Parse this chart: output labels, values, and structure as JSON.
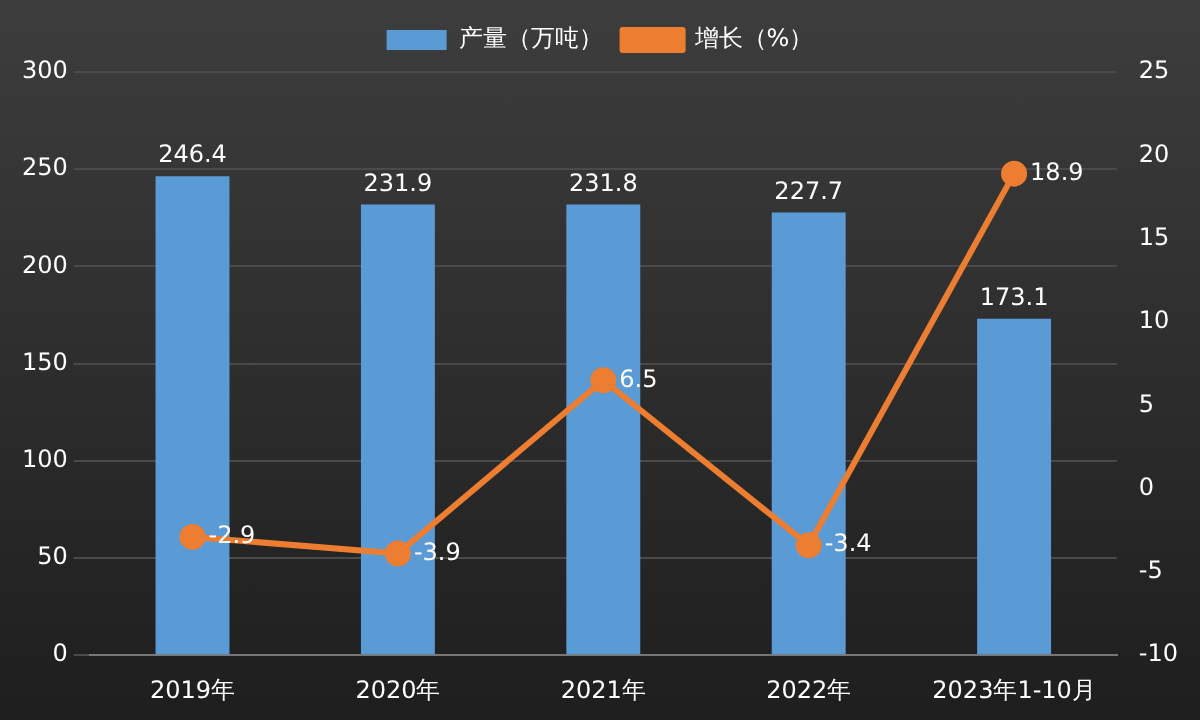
{
  "chart_data": {
    "type": "bar",
    "categories": [
      "2019年",
      "2020年",
      "2021年",
      "2022年",
      "2023年1-10月"
    ],
    "series": [
      {
        "name": "产量（万吨）",
        "color": "#5b9bd5",
        "values": [
          246.4,
          231.9,
          231.8,
          227.7,
          173.1
        ]
      },
      {
        "name": "增长（%）",
        "type": "line",
        "axis": "y2",
        "color": "#ed7d31",
        "marker": "circle",
        "values": [
          -2.9,
          -3.9,
          6.5,
          -3.4,
          18.9
        ]
      }
    ],
    "ylim": [
      0,
      300
    ],
    "yticks": [
      0,
      50,
      100,
      150,
      200,
      250,
      300
    ],
    "y2lim": [
      -10,
      25
    ],
    "y2ticks": [
      -10,
      -5,
      0,
      5,
      10,
      15,
      20,
      25
    ],
    "grid": "y",
    "legend": "top",
    "data_labels": true
  }
}
